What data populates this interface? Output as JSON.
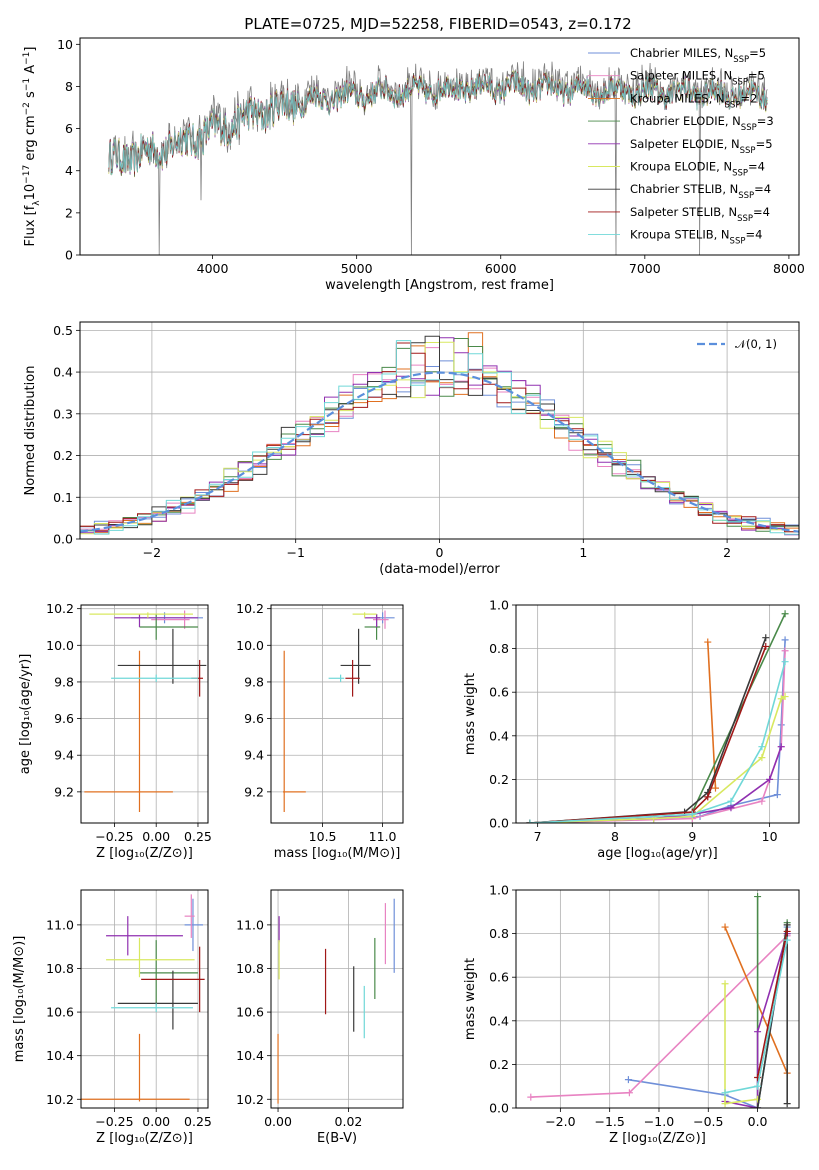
{
  "title": "PLATE=0725, MJD=52258, FIBERID=0543, z=0.172",
  "models": [
    {
      "name": "Chabrier MILES, N",
      "nssp": "5",
      "color": "#6f8fd8"
    },
    {
      "name": "Salpeter MILES, N",
      "nssp": "5",
      "color": "#e883c2"
    },
    {
      "name": "Kroupa MILES, N",
      "nssp": "2",
      "color": "#e07020"
    },
    {
      "name": "Chabrier ELODIE, N",
      "nssp": "3",
      "color": "#4a8a4a"
    },
    {
      "name": "Salpeter ELODIE, N",
      "nssp": "5",
      "color": "#9030b0"
    },
    {
      "name": "Kroupa ELODIE, N",
      "nssp": "4",
      "color": "#d8e860"
    },
    {
      "name": "Chabrier STELIB, N",
      "nssp": "4",
      "color": "#3a3a3a"
    },
    {
      "name": "Salpeter STELIB, N",
      "nssp": "4",
      "color": "#a01818"
    },
    {
      "name": "Kroupa STELIB, N",
      "nssp": "4",
      "color": "#70d8d8"
    }
  ],
  "nssp_sub": "SSP",
  "chart_data": [
    {
      "id": "spectrum",
      "type": "line",
      "xlabel": "wavelength [Angstrom, rest frame]",
      "ylabel_parts": [
        "Flux [f",
        "λ",
        "10",
        "−17",
        " erg cm",
        "−2",
        " s",
        "−1",
        " A",
        "−1",
        "]"
      ],
      "xlim": [
        3080,
        8070
      ],
      "ylim": [
        0,
        10.3
      ],
      "xticks": [
        4000,
        5000,
        6000,
        7000,
        8000
      ],
      "yticks": [
        0,
        2,
        4,
        6,
        8,
        10
      ],
      "data_color": "#808080",
      "continuum": [
        [
          3280,
          4.6
        ],
        [
          3500,
          4.9
        ],
        [
          3700,
          5.3
        ],
        [
          3900,
          5.8
        ],
        [
          4100,
          6.3
        ],
        [
          4300,
          6.9
        ],
        [
          4500,
          7.3
        ],
        [
          4700,
          7.6
        ],
        [
          5000,
          7.8
        ],
        [
          5300,
          8.0
        ],
        [
          5600,
          8.1
        ],
        [
          6000,
          8.2
        ],
        [
          6500,
          8.1
        ],
        [
          7000,
          8.0
        ],
        [
          7500,
          7.9
        ],
        [
          7850,
          7.8
        ]
      ],
      "dips": [
        [
          3630,
          0
        ],
        [
          3920,
          2.6
        ],
        [
          4100,
          5.2
        ],
        [
          5380,
          0
        ],
        [
          6800,
          0
        ],
        [
          7380,
          0
        ]
      ],
      "legend": "upper right"
    },
    {
      "id": "residuals",
      "type": "step",
      "xlabel": "(data-model)/error",
      "ylabel": "Normed distribution",
      "xlim": [
        -2.5,
        2.5
      ],
      "ylim": [
        0,
        0.52
      ],
      "xticks": [
        -2,
        -1,
        0,
        1,
        2
      ],
      "xticklabels": [
        "−2",
        "−1",
        "0",
        "1",
        "2"
      ],
      "yticks": [
        0,
        0.1,
        0.2,
        0.3,
        0.4,
        0.5
      ],
      "yticklabels": [
        "0.0",
        "0.1",
        "0.2",
        "0.3",
        "0.4",
        "0.5"
      ],
      "bin_width": 0.1,
      "legend_label": "𝒩(0, 1)",
      "legend_color": "#5b8fdc",
      "peak_values": [
        0.5,
        0.48,
        0.4,
        0.38,
        0.37,
        0.42,
        0.46,
        0.39,
        0.4,
        0.36
      ]
    },
    {
      "id": "age_vs_Z",
      "type": "errorbar",
      "xlabel": "Z [log₁₀(Z/Z⊙)]",
      "ylabel": "age  [log₁₀(age/yr)]",
      "xlim": [
        -0.45,
        0.31
      ],
      "ylim": [
        9.03,
        10.22
      ],
      "xticks": [
        -0.25,
        0,
        0.25
      ],
      "xticklabels": [
        "−0.25",
        "0.00",
        "0.25"
      ],
      "yticks": [
        9.2,
        9.4,
        9.6,
        9.8,
        10.0,
        10.2
      ],
      "yticklabels": [
        "9.2",
        "9.4",
        "9.6",
        "9.8",
        "10.0",
        "10.2"
      ],
      "points": [
        {
          "m": 0,
          "x": 0.05,
          "xe": [
            0.2,
            0.23
          ],
          "y": 10.15,
          "ye": [
            0.03,
            0.03
          ]
        },
        {
          "m": 1,
          "x": 0.17,
          "xe": [
            0.2,
            0.03
          ],
          "y": 10.14,
          "ye": [
            0.05,
            0.05
          ]
        },
        {
          "m": 2,
          "x": -0.1,
          "xe": [
            0.33,
            0.2
          ],
          "y": 9.2,
          "ye": [
            0.11,
            0.77
          ]
        },
        {
          "m": 3,
          "x": 0.0,
          "xe": [
            0.1,
            0.25
          ],
          "y": 10.1,
          "ye": [
            0.07,
            0.07
          ]
        },
        {
          "m": 4,
          "x": -0.1,
          "xe": [
            0.15,
            0.35
          ],
          "y": 10.15,
          "ye": [
            0.05,
            0.02
          ]
        },
        {
          "m": 5,
          "x": -0.05,
          "xe": [
            0.35,
            0.27
          ],
          "y": 10.17,
          "ye": [
            0.02,
            0.01
          ]
        },
        {
          "m": 6,
          "x": 0.1,
          "xe": [
            0.33,
            0.2
          ],
          "y": 9.89,
          "ye": [
            0.1,
            0.2
          ]
        },
        {
          "m": 7,
          "x": 0.26,
          "xe": [
            0.05,
            0.02
          ],
          "y": 9.82,
          "ye": [
            0.1,
            0.1
          ]
        },
        {
          "m": 8,
          "x": 0.0,
          "xe": [
            0.27,
            0.25
          ],
          "y": 9.82,
          "ye": [
            0.02,
            0.02
          ]
        }
      ]
    },
    {
      "id": "age_vs_mass",
      "type": "errorbar",
      "xlabel": "mass [log₁₀(M/M⊙)]",
      "ylabel": "",
      "xlim": [
        10.07,
        11.17
      ],
      "ylim": [
        9.03,
        10.22
      ],
      "xticks": [
        10.5,
        11.0
      ],
      "xticklabels": [
        "10.5",
        "11.0"
      ],
      "yticks": [
        9.2,
        9.4,
        9.6,
        9.8,
        10.0,
        10.2
      ],
      "yticklabels": [
        "9.2",
        "9.4",
        "9.6",
        "9.8",
        "10.0",
        "10.2"
      ],
      "points": [
        {
          "m": 0,
          "x": 11.0,
          "xe": [
            0.06,
            0.1
          ],
          "y": 10.15,
          "ye": [
            0.03,
            0.03
          ]
        },
        {
          "m": 1,
          "x": 11.02,
          "xe": [
            0.1,
            0.03
          ],
          "y": 10.14,
          "ye": [
            0.05,
            0.05
          ]
        },
        {
          "m": 2,
          "x": 10.18,
          "xe": [
            0.01,
            0.18
          ],
          "y": 9.2,
          "ye": [
            0.11,
            0.77
          ]
        },
        {
          "m": 3,
          "x": 10.95,
          "xe": [
            0.1,
            0.03
          ],
          "y": 10.1,
          "ye": [
            0.07,
            0.07
          ]
        },
        {
          "m": 4,
          "x": 10.95,
          "xe": [
            0.1,
            0.03
          ],
          "y": 10.15,
          "ye": [
            0.05,
            0.02
          ]
        },
        {
          "m": 5,
          "x": 10.85,
          "xe": [
            0.1,
            0.1
          ],
          "y": 10.17,
          "ye": [
            0.02,
            0.01
          ]
        },
        {
          "m": 6,
          "x": 10.8,
          "xe": [
            0.15,
            0.1
          ],
          "y": 9.89,
          "ye": [
            0.1,
            0.2
          ]
        },
        {
          "m": 7,
          "x": 10.75,
          "xe": [
            0.06,
            0.06
          ],
          "y": 9.82,
          "ye": [
            0.1,
            0.1
          ]
        },
        {
          "m": 8,
          "x": 10.65,
          "xe": [
            0.1,
            0.03
          ],
          "y": 9.82,
          "ye": [
            0.02,
            0.02
          ]
        }
      ]
    },
    {
      "id": "massweight_vs_age",
      "type": "line",
      "xlabel": "age  [log₁₀(age/yr)]",
      "ylabel": "mass weight",
      "xlim": [
        6.72,
        10.38
      ],
      "ylim": [
        0,
        1
      ],
      "xticks": [
        7,
        8,
        9,
        10
      ],
      "xticklabels": [
        "7",
        "8",
        "9",
        "10"
      ],
      "yticks": [
        0,
        0.2,
        0.4,
        0.6,
        0.8,
        1.0
      ],
      "yticklabels": [
        "0.0",
        "0.2",
        "0.4",
        "0.6",
        "0.8",
        "1.0"
      ],
      "series": [
        {
          "m": 0,
          "x": [
            6.9,
            9.1,
            9.5,
            10.1,
            10.15,
            10.2
          ],
          "y": [
            0.0,
            0.03,
            0.08,
            0.13,
            0.45,
            0.84
          ]
        },
        {
          "m": 1,
          "x": [
            6.9,
            9.0,
            9.9,
            10.15,
            10.2
          ],
          "y": [
            0.0,
            0.02,
            0.1,
            0.35,
            0.79
          ]
        },
        {
          "m": 2,
          "x": [
            9.2,
            9.3
          ],
          "y": [
            0.83,
            0.16
          ]
        },
        {
          "m": 3,
          "x": [
            6.9,
            9.0,
            10.2
          ],
          "y": [
            0.0,
            0.05,
            0.96
          ]
        },
        {
          "m": 4,
          "x": [
            6.9,
            8.5,
            9.0,
            9.5,
            10.0,
            10.15
          ],
          "y": [
            0.0,
            0.02,
            0.04,
            0.07,
            0.2,
            0.35
          ]
        },
        {
          "m": 5,
          "x": [
            6.9,
            8.5,
            9.0,
            9.9,
            10.15,
            10.2
          ],
          "y": [
            0.0,
            0.02,
            0.03,
            0.3,
            0.57,
            0.58
          ]
        },
        {
          "m": 6,
          "x": [
            6.9,
            8.9,
            9.2,
            9.95
          ],
          "y": [
            0.0,
            0.05,
            0.14,
            0.85
          ]
        },
        {
          "m": 7,
          "x": [
            6.9,
            9.0,
            9.2,
            9.95
          ],
          "y": [
            0.0,
            0.05,
            0.12,
            0.81
          ]
        },
        {
          "m": 8,
          "x": [
            6.9,
            9.0,
            9.5,
            9.9,
            10.2
          ],
          "y": [
            0.0,
            0.04,
            0.1,
            0.35,
            0.74
          ]
        }
      ]
    },
    {
      "id": "mass_vs_Z",
      "type": "errorbar",
      "xlabel": "Z [log₁₀(Z/Z⊙)]",
      "ylabel": "mass [log₁₀(M/M⊙)]",
      "xlim": [
        -0.45,
        0.31
      ],
      "ylim": [
        10.16,
        11.16
      ],
      "xticks": [
        -0.25,
        0,
        0.25
      ],
      "xticklabels": [
        "−0.25",
        "0.00",
        "0.25"
      ],
      "yticks": [
        10.2,
        10.4,
        10.6,
        10.8,
        11.0
      ],
      "yticklabels": [
        "10.2",
        "10.4",
        "10.6",
        "10.8",
        "11.0"
      ],
      "points": [
        {
          "m": 0,
          "x": 0.22,
          "xe": [
            0.05,
            0.06
          ],
          "y": 11.0,
          "ye": [
            0.12,
            0.12
          ]
        },
        {
          "m": 1,
          "x": 0.21,
          "xe": [
            0.04,
            0.02
          ],
          "y": 11.04,
          "ye": [
            0.1,
            0.1
          ]
        },
        {
          "m": 2,
          "x": -0.1,
          "xe": [
            0.35,
            0.3
          ],
          "y": 10.2,
          "ye": [
            0.01,
            0.3
          ]
        },
        {
          "m": 3,
          "x": 0.0,
          "xe": [
            0.1,
            0.25
          ],
          "y": 10.78,
          "ye": [
            0.15,
            0.15
          ]
        },
        {
          "m": 4,
          "x": -0.17,
          "xe": [
            0.13,
            0.33
          ],
          "y": 10.95,
          "ye": [
            0.09,
            0.09
          ]
        },
        {
          "m": 5,
          "x": -0.1,
          "xe": [
            0.2,
            0.33
          ],
          "y": 10.84,
          "ye": [
            0.08,
            0.1
          ]
        },
        {
          "m": 6,
          "x": 0.1,
          "xe": [
            0.33,
            0.15
          ],
          "y": 10.64,
          "ye": [
            0.12,
            0.15
          ]
        },
        {
          "m": 7,
          "x": 0.26,
          "xe": [
            0.35,
            0.03
          ],
          "y": 10.75,
          "ye": [
            0.15,
            0.15
          ]
        },
        {
          "m": 8,
          "x": 0.0,
          "xe": [
            0.27,
            0.22
          ],
          "y": 10.62,
          "ye": [
            0.02,
            0.02
          ]
        }
      ]
    },
    {
      "id": "mass_vs_ebv",
      "type": "errorbar",
      "xlabel": "E(B-V)",
      "ylabel": "",
      "xlim": [
        -0.002,
        0.0355
      ],
      "ylim": [
        10.16,
        11.16
      ],
      "xticks": [
        0,
        0.02
      ],
      "xticklabels": [
        "0.00",
        "0.02"
      ],
      "yticks": [
        10.2,
        10.4,
        10.6,
        10.8,
        11.0
      ],
      "yticklabels": [
        "10.2",
        "10.4",
        "10.6",
        "10.8",
        "11.0"
      ],
      "points": [
        {
          "m": 0,
          "x": 0.033,
          "xe": [
            0,
            0
          ],
          "y": 10.95,
          "ye": [
            0.17,
            0.17
          ]
        },
        {
          "m": 1,
          "x": 0.0305,
          "xe": [
            0,
            0
          ],
          "y": 10.96,
          "ye": [
            0.14,
            0.14
          ]
        },
        {
          "m": 2,
          "x": 0.0,
          "xe": [
            0,
            0
          ],
          "y": 10.2,
          "ye": [
            0.02,
            0.3
          ]
        },
        {
          "m": 3,
          "x": 0.0275,
          "xe": [
            0,
            0
          ],
          "y": 10.8,
          "ye": [
            0.14,
            0.14
          ]
        },
        {
          "m": 4,
          "x": 0.0003,
          "xe": [
            0,
            0
          ],
          "y": 10.98,
          "ye": [
            0.06,
            0.06
          ]
        },
        {
          "m": 5,
          "x": 0.0003,
          "xe": [
            0,
            0
          ],
          "y": 10.84,
          "ye": [
            0.09,
            0.09
          ]
        },
        {
          "m": 6,
          "x": 0.0215,
          "xe": [
            0,
            0
          ],
          "y": 10.66,
          "ye": [
            0.15,
            0.15
          ]
        },
        {
          "m": 7,
          "x": 0.0135,
          "xe": [
            0,
            0
          ],
          "y": 10.74,
          "ye": [
            0.15,
            0.15
          ]
        },
        {
          "m": 8,
          "x": 0.0245,
          "xe": [
            0,
            0
          ],
          "y": 10.6,
          "ye": [
            0.12,
            0.12
          ]
        }
      ]
    },
    {
      "id": "massweight_vs_Z",
      "type": "line",
      "xlabel": "Z [log₁₀(Z/Z⊙)]",
      "ylabel": "mass weight",
      "xlim": [
        -2.45,
        0.42
      ],
      "ylim": [
        0,
        1
      ],
      "xticks": [
        -2.0,
        -1.5,
        -1.0,
        -0.5,
        0.0
      ],
      "xticklabels": [
        "−2.0",
        "−1.5",
        "−1.0",
        "−0.5",
        "0.0"
      ],
      "yticks": [
        0,
        0.2,
        0.4,
        0.6,
        0.8,
        1.0
      ],
      "yticklabels": [
        "0.0",
        "0.2",
        "0.4",
        "0.6",
        "0.8",
        "1.0"
      ],
      "series": [
        {
          "m": 0,
          "x": [
            -1.31,
            -0.33,
            0.0,
            0.3
          ],
          "y": [
            0.13,
            0.06,
            0.0,
            0.83
          ]
        },
        {
          "m": 1,
          "x": [
            -2.3,
            -1.3,
            0.3
          ],
          "y": [
            0.05,
            0.07,
            0.79
          ]
        },
        {
          "m": 2,
          "x": [
            -0.33,
            0.3
          ],
          "y": [
            0.83,
            0.16
          ]
        },
        {
          "m": 3,
          "x": [
            0.0,
            0.0,
            0.3
          ],
          "y": [
            0.97,
            0.0,
            0.85
          ]
        },
        {
          "m": 4,
          "x": [
            -0.33,
            0.0,
            0.0,
            0.3
          ],
          "y": [
            0.03,
            0.0,
            0.35,
            0.8
          ]
        },
        {
          "m": 5,
          "x": [
            -0.33,
            -0.33,
            0.0
          ],
          "y": [
            0.57,
            0.02,
            0.04
          ]
        },
        {
          "m": 6,
          "x": [
            0.0,
            0.3,
            0.3
          ],
          "y": [
            0.0,
            0.84,
            0.02
          ]
        },
        {
          "m": 7,
          "x": [
            0.0,
            0.3
          ],
          "y": [
            0.14,
            0.81
          ]
        },
        {
          "m": 8,
          "x": [
            -0.33,
            0.0,
            0.3
          ],
          "y": [
            0.07,
            0.1,
            0.77
          ]
        }
      ]
    }
  ]
}
